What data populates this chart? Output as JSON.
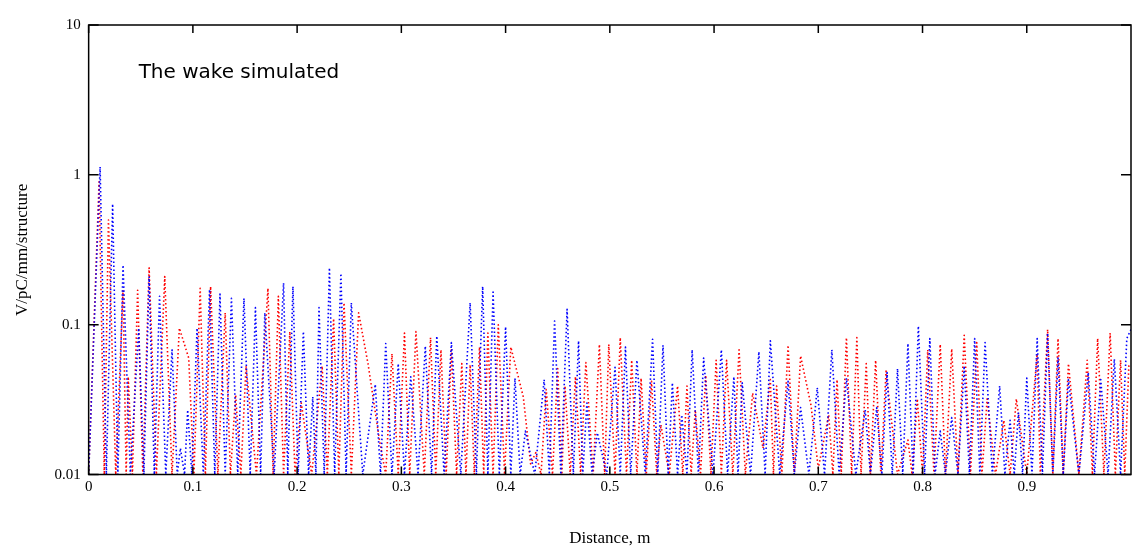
{
  "chart_data": {
    "type": "line",
    "xlabel": "Distance, m",
    "ylabel": "V/pC/mm/structure",
    "annotations": [
      "The wake simulated"
    ],
    "log": "y",
    "grid": false,
    "legend": false,
    "marker": "none",
    "line_style": "dotted",
    "xlim": [
      0,
      1
    ],
    "xticks": [
      0,
      0.1,
      0.2,
      0.3,
      0.4,
      0.5,
      0.6,
      0.7,
      0.8,
      0.9
    ],
    "ylim": [
      0.01,
      10
    ],
    "yticks": [
      0.01,
      0.1,
      1,
      10
    ],
    "series": [
      {
        "color": "#0000ff",
        "x": [
          0,
          0.011,
          0.017,
          0.023,
          0.028,
          0.033,
          0.04,
          0.048,
          0.053,
          0.058,
          0.063,
          0.068,
          0.074,
          0.08,
          0.085,
          0.088,
          0.092,
          0.095,
          0.099,
          0.104,
          0.11,
          0.116,
          0.121,
          0.126,
          0.131,
          0.137,
          0.143,
          0.149,
          0.155,
          0.16,
          0.165,
          0.169,
          0.178,
          0.187,
          0.191,
          0.196,
          0.201,
          0.206,
          0.211,
          0.215,
          0.218,
          0.221,
          0.226,
          0.231,
          0.236,
          0.242,
          0.247,
          0.252,
          0.263,
          0.275,
          0.28,
          0.285,
          0.291,
          0.297,
          0.303,
          0.309,
          0.316,
          0.323,
          0.329,
          0.334,
          0.341,
          0.348,
          0.357,
          0.366,
          0.372,
          0.378,
          0.383,
          0.388,
          0.394,
          0.4,
          0.405,
          0.409,
          0.414,
          0.419,
          0.428,
          0.437,
          0.442,
          0.447,
          0.453,
          0.459,
          0.465,
          0.47,
          0.474,
          0.478,
          0.483,
          0.488,
          0.497,
          0.505,
          0.51,
          0.515,
          0.52,
          0.526,
          0.534,
          0.541,
          0.546,
          0.551,
          0.556,
          0.56,
          0.565,
          0.569,
          0.574,
          0.579,
          0.585,
          0.59,
          0.599,
          0.607,
          0.613,
          0.619,
          0.623,
          0.627,
          0.635,
          0.643,
          0.649,
          0.654,
          0.663,
          0.671,
          0.677,
          0.683,
          0.691,
          0.699,
          0.706,
          0.713,
          0.72,
          0.727,
          0.736,
          0.745,
          0.75,
          0.756,
          0.761,
          0.766,
          0.771,
          0.776,
          0.781,
          0.786,
          0.791,
          0.796,
          0.802,
          0.807,
          0.812,
          0.817,
          0.822,
          0.828,
          0.834,
          0.84,
          0.845,
          0.85,
          0.855,
          0.86,
          0.867,
          0.874,
          0.879,
          0.884,
          0.888,
          0.892,
          0.896,
          0.9,
          0.905,
          0.91,
          0.915,
          0.92,
          0.925,
          0.93,
          0.935,
          0.94,
          0.95,
          0.959,
          0.965,
          0.971,
          0.978,
          0.984,
          0.99,
          0.996,
          1.0
        ],
        "values": [
          0.01,
          1.13,
          0.01,
          0.64,
          0.01,
          0.25,
          0.01,
          0.095,
          0.01,
          0.21,
          0.01,
          0.155,
          0.01,
          0.068,
          0.01,
          0.015,
          0.01,
          0.027,
          0.01,
          0.095,
          0.01,
          0.172,
          0.01,
          0.16,
          0.01,
          0.15,
          0.01,
          0.15,
          0.01,
          0.13,
          0.01,
          0.12,
          0.01,
          0.19,
          0.01,
          0.18,
          0.01,
          0.09,
          0.01,
          0.033,
          0.01,
          0.13,
          0.01,
          0.24,
          0.01,
          0.22,
          0.01,
          0.14,
          0.01,
          0.04,
          0.01,
          0.075,
          0.01,
          0.055,
          0.01,
          0.045,
          0.01,
          0.072,
          0.01,
          0.084,
          0.01,
          0.076,
          0.01,
          0.14,
          0.01,
          0.18,
          0.01,
          0.165,
          0.01,
          0.097,
          0.01,
          0.044,
          0.01,
          0.0195,
          0.01,
          0.043,
          0.01,
          0.106,
          0.01,
          0.127,
          0.01,
          0.078,
          0.01,
          0.03,
          0.01,
          0.019,
          0.01,
          0.052,
          0.01,
          0.071,
          0.01,
          0.058,
          0.01,
          0.08,
          0.01,
          0.073,
          0.01,
          0.041,
          0.01,
          0.025,
          0.01,
          0.068,
          0.01,
          0.06,
          0.01,
          0.068,
          0.01,
          0.045,
          0.01,
          0.041,
          0.01,
          0.066,
          0.01,
          0.078,
          0.01,
          0.042,
          0.01,
          0.028,
          0.01,
          0.038,
          0.01,
          0.068,
          0.01,
          0.044,
          0.01,
          0.027,
          0.01,
          0.028,
          0.01,
          0.048,
          0.01,
          0.051,
          0.01,
          0.075,
          0.01,
          0.098,
          0.01,
          0.081,
          0.01,
          0.0195,
          0.01,
          0.024,
          0.01,
          0.053,
          0.01,
          0.081,
          0.01,
          0.076,
          0.01,
          0.039,
          0.01,
          0.023,
          0.01,
          0.026,
          0.01,
          0.044,
          0.01,
          0.081,
          0.01,
          0.088,
          0.01,
          0.06,
          0.01,
          0.043,
          0.01,
          0.048,
          0.01,
          0.043,
          0.01,
          0.059,
          0.01,
          0.081,
          0.093
        ]
      },
      {
        "color": "#ff0000",
        "x": [
          0,
          0.01,
          0.015,
          0.019,
          0.026,
          0.033,
          0.036,
          0.038,
          0.042,
          0.047,
          0.052,
          0.058,
          0.065,
          0.073,
          0.08,
          0.087,
          0.096,
          0.101,
          0.107,
          0.112,
          0.117,
          0.124,
          0.131,
          0.136,
          0.141,
          0.146,
          0.151,
          0.161,
          0.172,
          0.177,
          0.182,
          0.187,
          0.193,
          0.198,
          0.204,
          0.214,
          0.224,
          0.229,
          0.235,
          0.24,
          0.245,
          0.252,
          0.259,
          0.268,
          0.279,
          0.285,
          0.291,
          0.297,
          0.303,
          0.308,
          0.314,
          0.322,
          0.328,
          0.333,
          0.338,
          0.343,
          0.348,
          0.353,
          0.358,
          0.362,
          0.366,
          0.37,
          0.375,
          0.379,
          0.383,
          0.388,
          0.393,
          0.399,
          0.405,
          0.417,
          0.424,
          0.429,
          0.434,
          0.439,
          0.445,
          0.45,
          0.454,
          0.457,
          0.462,
          0.467,
          0.472,
          0.477,
          0.484,
          0.49,
          0.495,
          0.499,
          0.505,
          0.51,
          0.516,
          0.521,
          0.526,
          0.53,
          0.535,
          0.54,
          0.545,
          0.549,
          0.557,
          0.565,
          0.57,
          0.574,
          0.578,
          0.582,
          0.587,
          0.592,
          0.597,
          0.602,
          0.607,
          0.612,
          0.618,
          0.624,
          0.63,
          0.637,
          0.647,
          0.654,
          0.657,
          0.66,
          0.665,
          0.671,
          0.677,
          0.683,
          0.693,
          0.7,
          0.71,
          0.714,
          0.718,
          0.722,
          0.727,
          0.732,
          0.737,
          0.741,
          0.746,
          0.75,
          0.755,
          0.76,
          0.765,
          0.776,
          0.786,
          0.79,
          0.795,
          0.8,
          0.805,
          0.811,
          0.817,
          0.822,
          0.828,
          0.834,
          0.84,
          0.846,
          0.852,
          0.857,
          0.862,
          0.87,
          0.878,
          0.884,
          0.89,
          0.9,
          0.91,
          0.913,
          0.92,
          0.925,
          0.93,
          0.935,
          0.94,
          0.95,
          0.958,
          0.963,
          0.968,
          0.974,
          0.98,
          0.985,
          0.99,
          0.994,
          0.998
        ],
        "values": [
          0.01,
          0.9,
          0.01,
          0.5,
          0.01,
          0.17,
          0.01,
          0.045,
          0.01,
          0.17,
          0.01,
          0.24,
          0.01,
          0.21,
          0.01,
          0.095,
          0.06,
          0.01,
          0.175,
          0.01,
          0.18,
          0.01,
          0.12,
          0.01,
          0.034,
          0.01,
          0.053,
          0.01,
          0.175,
          0.01,
          0.155,
          0.01,
          0.09,
          0.01,
          0.03,
          0.01,
          0.053,
          0.01,
          0.11,
          0.01,
          0.14,
          0.01,
          0.12,
          0.055,
          0.017,
          0.01,
          0.064,
          0.01,
          0.088,
          0.01,
          0.09,
          0.01,
          0.082,
          0.01,
          0.068,
          0.01,
          0.068,
          0.01,
          0.055,
          0.01,
          0.054,
          0.01,
          0.071,
          0.01,
          0.088,
          0.01,
          0.1,
          0.01,
          0.071,
          0.033,
          0.0118,
          0.014,
          0.01,
          0.037,
          0.01,
          0.051,
          0.01,
          0.039,
          0.01,
          0.045,
          0.01,
          0.056,
          0.01,
          0.074,
          0.01,
          0.074,
          0.01,
          0.082,
          0.01,
          0.058,
          0.01,
          0.044,
          0.01,
          0.042,
          0.01,
          0.0215,
          0.01,
          0.039,
          0.01,
          0.039,
          0.01,
          0.027,
          0.01,
          0.046,
          0.01,
          0.058,
          0.01,
          0.058,
          0.01,
          0.068,
          0.01,
          0.035,
          0.015,
          0.043,
          0.01,
          0.039,
          0.01,
          0.073,
          0.01,
          0.062,
          0.029,
          0.011,
          0.025,
          0.01,
          0.043,
          0.01,
          0.082,
          0.01,
          0.082,
          0.01,
          0.055,
          0.01,
          0.058,
          0.01,
          0.049,
          0.01,
          0.017,
          0.01,
          0.032,
          0.01,
          0.068,
          0.01,
          0.074,
          0.01,
          0.069,
          0.01,
          0.085,
          0.01,
          0.076,
          0.01,
          0.032,
          0.01,
          0.023,
          0.01,
          0.032,
          0.01,
          0.064,
          0.01,
          0.093,
          0.01,
          0.081,
          0.01,
          0.055,
          0.01,
          0.058,
          0.01,
          0.081,
          0.01,
          0.088,
          0.01,
          0.058,
          0.01,
          0.055
        ]
      }
    ]
  }
}
